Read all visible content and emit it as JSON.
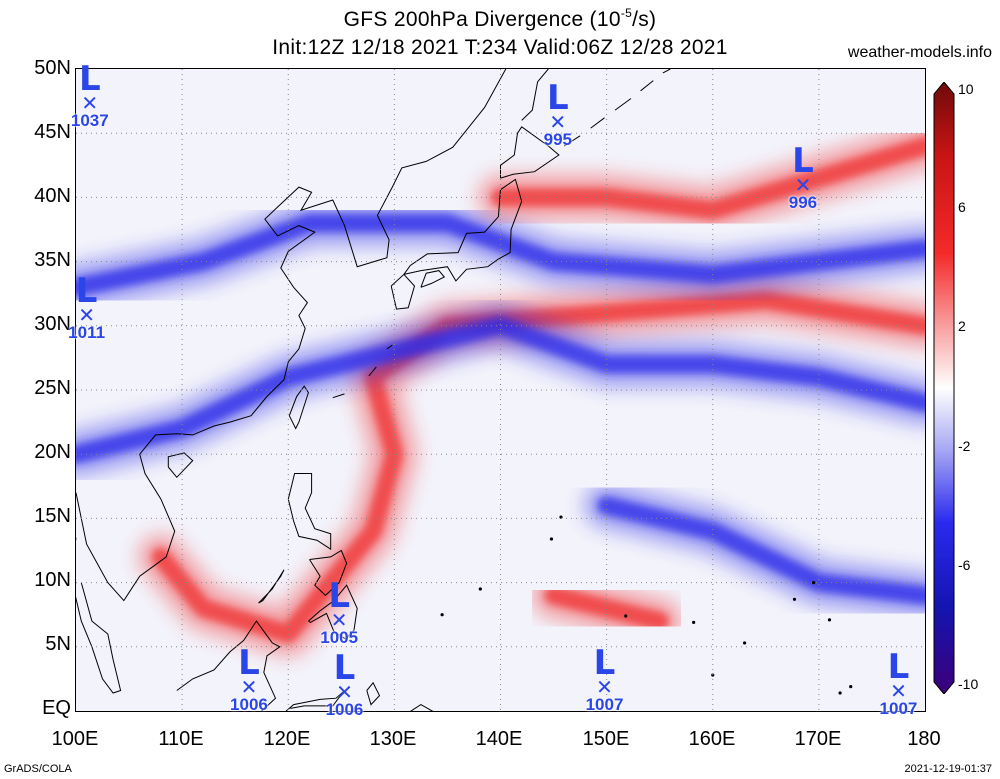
{
  "title": {
    "line1_prefix": "GFS 200hPa Divergence (10",
    "line1_exp": "-5",
    "line1_suffix": "/s)",
    "line2": "Init:12Z 12/18 2021 T:234 Valid:06Z 12/28 2021"
  },
  "site": "weather-models.info",
  "footer": {
    "left": "GrADS/COLA",
    "right": "2021-12-19-01:37"
  },
  "y_axis": {
    "ticks": [
      "50N",
      "45N",
      "40N",
      "35N",
      "30N",
      "25N",
      "20N",
      "15N",
      "10N",
      "5N",
      "EQ"
    ]
  },
  "x_axis": {
    "ticks": [
      "100E",
      "110E",
      "120E",
      "130E",
      "140E",
      "150E",
      "160E",
      "170E",
      "180"
    ]
  },
  "colorbar": {
    "labels": [
      "10",
      "6",
      "2",
      "-2",
      "-6",
      "-10"
    ],
    "colors": [
      "#7a0c0c",
      "#c81414",
      "#f02020",
      "#f66060",
      "#fbb0b0",
      "#fbe4e4",
      "#ffffff",
      "#e4e4fb",
      "#b0b0f6",
      "#6060ee",
      "#2020e0",
      "#1010a8",
      "#3c0078"
    ]
  },
  "lows": [
    {
      "letter": "L",
      "pressure": "1037",
      "lon": 101.3,
      "lat": 47.3
    },
    {
      "letter": "L",
      "pressure": "995",
      "lon": 145.4,
      "lat": 45.8
    },
    {
      "letter": "L",
      "pressure": "996",
      "lon": 168.5,
      "lat": 40.9
    },
    {
      "letter": "L",
      "pressure": "1011",
      "lon": 101.0,
      "lat": 30.8
    },
    {
      "letter": "L",
      "pressure": "1005",
      "lon": 124.8,
      "lat": 7.0
    },
    {
      "letter": "L",
      "pressure": "1006",
      "lon": 116.3,
      "lat": 1.8
    },
    {
      "letter": "L",
      "pressure": "1006",
      "lon": 125.3,
      "lat": 1.4
    },
    {
      "letter": "L",
      "pressure": "1007",
      "lon": 149.8,
      "lat": 1.8
    },
    {
      "letter": "L",
      "pressure": "1007",
      "lon": 177.5,
      "lat": 1.5
    }
  ],
  "field": {
    "divergence_bands": [
      {
        "sign": "positive",
        "points": [
          [
            108,
            12
          ],
          [
            112,
            8
          ],
          [
            120,
            6
          ],
          [
            128,
            14
          ],
          [
            130,
            20
          ],
          [
            128,
            26
          ],
          [
            135,
            30
          ],
          [
            150,
            31
          ],
          [
            165,
            32
          ],
          [
            180,
            30
          ]
        ]
      },
      {
        "sign": "negative",
        "points": [
          [
            100,
            20
          ],
          [
            110,
            22
          ],
          [
            120,
            26
          ],
          [
            130,
            28
          ],
          [
            140,
            30
          ],
          [
            150,
            27
          ],
          [
            160,
            27
          ],
          [
            170,
            26
          ],
          [
            180,
            24
          ]
        ]
      },
      {
        "sign": "negative",
        "points": [
          [
            100,
            33
          ],
          [
            112,
            35
          ],
          [
            122,
            38
          ],
          [
            135,
            38
          ],
          [
            145,
            35
          ],
          [
            160,
            34
          ],
          [
            180,
            36
          ]
        ]
      },
      {
        "sign": "positive",
        "points": [
          [
            140,
            40
          ],
          [
            150,
            40
          ],
          [
            160,
            39
          ],
          [
            172,
            42
          ],
          [
            180,
            44
          ]
        ]
      },
      {
        "sign": "negative",
        "points": [
          [
            150,
            16
          ],
          [
            160,
            14
          ],
          [
            170,
            10
          ],
          [
            180,
            9
          ]
        ]
      },
      {
        "sign": "positive",
        "points": [
          [
            145,
            9
          ],
          [
            150,
            8
          ],
          [
            155,
            7
          ]
        ]
      }
    ]
  }
}
